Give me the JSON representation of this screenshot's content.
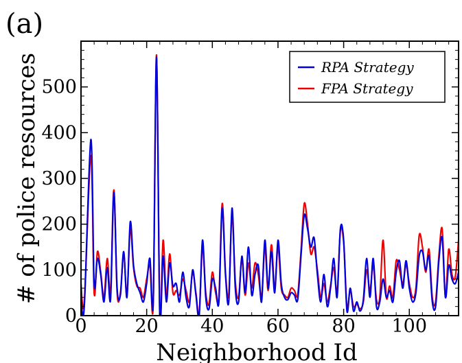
{
  "chart_data": {
    "type": "line",
    "panel_label": "(a)",
    "xlabel": "Neighborhood Id",
    "ylabel": "# of police resources",
    "xlim": [
      0,
      115
    ],
    "ylim": [
      0,
      600
    ],
    "x_ticks": [
      0,
      20,
      40,
      60,
      80,
      100
    ],
    "y_ticks": [
      0,
      100,
      200,
      300,
      400,
      500
    ],
    "legend_position": "top-right",
    "grid": false,
    "series": [
      {
        "name": "RPA Strategy",
        "color": "#0000dd",
        "points": [
          [
            0,
            40
          ],
          [
            1,
            20
          ],
          [
            3,
            385
          ],
          [
            4,
            70
          ],
          [
            5,
            125
          ],
          [
            6,
            90
          ],
          [
            7,
            30
          ],
          [
            8,
            105
          ],
          [
            9,
            35
          ],
          [
            10,
            270
          ],
          [
            11,
            60
          ],
          [
            12,
            45
          ],
          [
            13,
            140
          ],
          [
            14,
            40
          ],
          [
            15,
            205
          ],
          [
            16,
            110
          ],
          [
            17,
            70
          ],
          [
            18,
            50
          ],
          [
            19,
            30
          ],
          [
            20,
            70
          ],
          [
            21,
            125
          ],
          [
            22,
            30
          ],
          [
            23,
            565
          ],
          [
            24,
            0
          ],
          [
            25,
            130
          ],
          [
            26,
            30
          ],
          [
            27,
            115
          ],
          [
            28,
            65
          ],
          [
            29,
            70
          ],
          [
            30,
            30
          ],
          [
            31,
            95
          ],
          [
            32,
            40
          ],
          [
            33,
            20
          ],
          [
            34,
            100
          ],
          [
            35,
            45
          ],
          [
            36,
            0
          ],
          [
            37,
            165
          ],
          [
            38,
            40
          ],
          [
            39,
            15
          ],
          [
            40,
            80
          ],
          [
            41,
            60
          ],
          [
            42,
            30
          ],
          [
            43,
            235
          ],
          [
            44,
            90
          ],
          [
            45,
            30
          ],
          [
            46,
            235
          ],
          [
            47,
            60
          ],
          [
            48,
            30
          ],
          [
            49,
            130
          ],
          [
            50,
            50
          ],
          [
            51,
            150
          ],
          [
            52,
            45
          ],
          [
            53,
            90
          ],
          [
            54,
            110
          ],
          [
            55,
            30
          ],
          [
            56,
            165
          ],
          [
            57,
            60
          ],
          [
            58,
            140
          ],
          [
            59,
            50
          ],
          [
            60,
            165
          ],
          [
            61,
            70
          ],
          [
            62,
            40
          ],
          [
            63,
            35
          ],
          [
            64,
            50
          ],
          [
            65,
            45
          ],
          [
            66,
            35
          ],
          [
            67,
            130
          ],
          [
            68,
            220
          ],
          [
            69,
            190
          ],
          [
            70,
            150
          ],
          [
            71,
            170
          ],
          [
            72,
            90
          ],
          [
            73,
            30
          ],
          [
            74,
            90
          ],
          [
            75,
            20
          ],
          [
            76,
            60
          ],
          [
            77,
            125
          ],
          [
            78,
            40
          ],
          [
            79,
            190
          ],
          [
            80,
            165
          ],
          [
            81,
            10
          ],
          [
            82,
            60
          ],
          [
            83,
            10
          ],
          [
            84,
            30
          ],
          [
            85,
            10
          ],
          [
            86,
            35
          ],
          [
            87,
            125
          ],
          [
            88,
            40
          ],
          [
            89,
            125
          ],
          [
            90,
            20
          ],
          [
            91,
            30
          ],
          [
            92,
            80
          ],
          [
            93,
            40
          ],
          [
            94,
            55
          ],
          [
            95,
            30
          ],
          [
            96,
            95
          ],
          [
            97,
            120
          ],
          [
            98,
            60
          ],
          [
            99,
            120
          ],
          [
            100,
            60
          ],
          [
            101,
            30
          ],
          [
            102,
            50
          ],
          [
            103,
            130
          ],
          [
            104,
            140
          ],
          [
            105,
            100
          ],
          [
            106,
            130
          ],
          [
            107,
            30
          ],
          [
            108,
            20
          ],
          [
            109,
            120
          ],
          [
            110,
            170
          ],
          [
            111,
            40
          ],
          [
            112,
            110
          ],
          [
            113,
            80
          ],
          [
            114,
            70
          ],
          [
            115,
            95
          ]
        ]
      },
      {
        "name": "FPA Strategy",
        "color": "#ee0000",
        "points": [
          [
            0,
            70
          ],
          [
            1,
            30
          ],
          [
            3,
            350
          ],
          [
            4,
            50
          ],
          [
            5,
            140
          ],
          [
            6,
            95
          ],
          [
            7,
            40
          ],
          [
            8,
            125
          ],
          [
            9,
            50
          ],
          [
            10,
            275
          ],
          [
            11,
            50
          ],
          [
            12,
            50
          ],
          [
            13,
            135
          ],
          [
            14,
            45
          ],
          [
            15,
            190
          ],
          [
            16,
            105
          ],
          [
            17,
            65
          ],
          [
            18,
            60
          ],
          [
            19,
            40
          ],
          [
            20,
            80
          ],
          [
            21,
            110
          ],
          [
            22,
            25
          ],
          [
            23,
            570
          ],
          [
            24,
            0
          ],
          [
            25,
            165
          ],
          [
            26,
            40
          ],
          [
            27,
            135
          ],
          [
            28,
            50
          ],
          [
            29,
            55
          ],
          [
            30,
            45
          ],
          [
            31,
            80
          ],
          [
            32,
            55
          ],
          [
            33,
            30
          ],
          [
            34,
            95
          ],
          [
            35,
            50
          ],
          [
            36,
            5
          ],
          [
            37,
            150
          ],
          [
            38,
            50
          ],
          [
            39,
            25
          ],
          [
            40,
            95
          ],
          [
            41,
            50
          ],
          [
            42,
            40
          ],
          [
            43,
            245
          ],
          [
            44,
            95
          ],
          [
            45,
            45
          ],
          [
            46,
            220
          ],
          [
            47,
            75
          ],
          [
            48,
            40
          ],
          [
            49,
            125
          ],
          [
            50,
            45
          ],
          [
            51,
            115
          ],
          [
            52,
            60
          ],
          [
            53,
            115
          ],
          [
            54,
            90
          ],
          [
            55,
            40
          ],
          [
            56,
            150
          ],
          [
            57,
            55
          ],
          [
            58,
            155
          ],
          [
            59,
            60
          ],
          [
            60,
            150
          ],
          [
            61,
            60
          ],
          [
            62,
            45
          ],
          [
            63,
            40
          ],
          [
            64,
            60
          ],
          [
            65,
            55
          ],
          [
            66,
            45
          ],
          [
            67,
            140
          ],
          [
            68,
            245
          ],
          [
            69,
            200
          ],
          [
            70,
            135
          ],
          [
            71,
            150
          ],
          [
            72,
            100
          ],
          [
            73,
            40
          ],
          [
            74,
            70
          ],
          [
            75,
            30
          ],
          [
            76,
            65
          ],
          [
            77,
            105
          ],
          [
            78,
            50
          ],
          [
            79,
            185
          ],
          [
            80,
            160
          ],
          [
            81,
            20
          ],
          [
            82,
            55
          ],
          [
            83,
            20
          ],
          [
            84,
            25
          ],
          [
            85,
            15
          ],
          [
            86,
            30
          ],
          [
            87,
            100
          ],
          [
            88,
            55
          ],
          [
            89,
            110
          ],
          [
            90,
            35
          ],
          [
            91,
            40
          ],
          [
            92,
            165
          ],
          [
            93,
            40
          ],
          [
            94,
            65
          ],
          [
            95,
            40
          ],
          [
            96,
            120
          ],
          [
            97,
            100
          ],
          [
            98,
            70
          ],
          [
            99,
            110
          ],
          [
            100,
            70
          ],
          [
            101,
            40
          ],
          [
            102,
            60
          ],
          [
            103,
            175
          ],
          [
            104,
            150
          ],
          [
            105,
            95
          ],
          [
            106,
            145
          ],
          [
            107,
            40
          ],
          [
            108,
            30
          ],
          [
            109,
            130
          ],
          [
            110,
            190
          ],
          [
            111,
            40
          ],
          [
            112,
            145
          ],
          [
            113,
            90
          ],
          [
            114,
            85
          ],
          [
            115,
            165
          ]
        ]
      }
    ]
  }
}
